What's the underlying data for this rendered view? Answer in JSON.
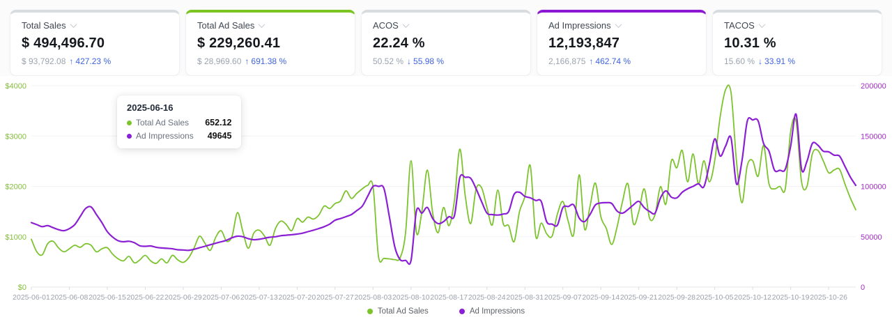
{
  "colors": {
    "green": "#7cc32e",
    "purple": "#8b1fd3",
    "axis_green": "#84bd3c",
    "axis_purple": "#a32cc8",
    "change_blue": "#3e63dd",
    "card_accent_default": "#d9dcdf"
  },
  "cards": [
    {
      "title": "Total Sales",
      "value": "$ 494,496.70",
      "prev": "$ 93,792.08",
      "change_arrow": "↑",
      "change": "427.23 %",
      "direction": "up",
      "accent_color": "#d9dcdf"
    },
    {
      "title": "Total Ad Sales",
      "value": "$ 229,260.41",
      "prev": "$ 28,969.60",
      "change_arrow": "↑",
      "change": "691.38 %",
      "direction": "up",
      "accent_color": "#7ac522"
    },
    {
      "title": "ACOS",
      "value": "22.24 %",
      "prev": "50.52 %",
      "change_arrow": "↓",
      "change": "55.98 %",
      "direction": "down",
      "accent_color": "#d9dcdf"
    },
    {
      "title": "Ad Impressions",
      "value": "12,193,847",
      "prev": "2,166,875",
      "change_arrow": "↑",
      "change": "462.74 %",
      "direction": "up",
      "accent_color": "#8c18d4"
    },
    {
      "title": "TACOS",
      "value": "10.31 %",
      "prev": "15.60 %",
      "change_arrow": "↓",
      "change": "33.91 %",
      "direction": "down",
      "accent_color": "#d9dcdf"
    }
  ],
  "tooltip": {
    "date": "2025-06-16",
    "rows": [
      {
        "label": "Total Ad Sales",
        "value": "652.12",
        "color": "#7cc32e"
      },
      {
        "label": "Ad Impressions",
        "value": "49645",
        "color": "#8b1fd3"
      }
    ]
  },
  "chart_data": {
    "type": "line",
    "start_date": "2025-06-01",
    "end_date": "2025-10-31",
    "x_tick_interval_days": 7,
    "grid": "horizontal",
    "legend_position": "bottom",
    "x_tick_labels": [
      "2025-06-01",
      "2025-06-08",
      "2025-06-15",
      "2025-06-22",
      "2025-06-29",
      "2025-07-06",
      "2025-07-13",
      "2025-07-20",
      "2025-07-27",
      "2025-08-03",
      "2025-08-10",
      "2025-08-17",
      "2025-08-24",
      "2025-08-31",
      "2025-09-07",
      "2025-09-14",
      "2025-09-21",
      "2025-09-28",
      "2025-10-05",
      "2025-10-12",
      "2025-10-19",
      "2025-10-26"
    ],
    "y_left": {
      "ticks": [
        "$0",
        "$1000",
        "$2000",
        "$3000",
        "$4000"
      ],
      "min": 0,
      "max": 4000,
      "color": "#84bd3c"
    },
    "y_right": {
      "ticks": [
        "0",
        "50000",
        "100000",
        "150000",
        "200000"
      ],
      "min": 0,
      "max": 200000,
      "color": "#a32cc8"
    },
    "series": [
      {
        "name": "Total Ad Sales",
        "axis": "left",
        "color": "#7cc32e",
        "values": [
          950,
          700,
          640,
          860,
          910,
          780,
          700,
          760,
          830,
          790,
          860,
          830,
          700,
          760,
          780,
          652.12,
          560,
          520,
          610,
          480,
          540,
          630,
          520,
          470,
          560,
          480,
          630,
          540,
          490,
          580,
          776,
          1010,
          870,
          730,
          990,
          1120,
          910,
          1010,
          1480,
          1100,
          770,
          1070,
          1130,
          1010,
          830,
          1160,
          1310,
          1240,
          1120,
          1360,
          1290,
          1390,
          1350,
          1430,
          1610,
          1560,
          1660,
          1710,
          1910,
          1760,
          1860,
          1950,
          2020,
          1995,
          610,
          570,
          560,
          545,
          580,
          1080,
          2510,
          1080,
          1500,
          2325,
          1470,
          1080,
          1580,
          1220,
          1720,
          2740,
          1815,
          1260,
          1950,
          1975,
          1580,
          1235,
          1925,
          1260,
          1220,
          900,
          1500,
          1800,
          2410,
          1010,
          1270,
          1060,
          1010,
          1450,
          1700,
          1300,
          1050,
          2230,
          1150,
          1600,
          2065,
          1400,
          1165,
          845,
          1200,
          1700,
          2050,
          1260,
          1500,
          1950,
          1360,
          1440,
          1995,
          1650,
          2510,
          2370,
          2715,
          2090,
          2645,
          2050,
          2510,
          2090,
          2510,
          3380,
          3920,
          3865,
          2510,
          1675,
          2410,
          2510,
          2200,
          2810,
          2050,
          1950,
          2000,
          1950,
          3090,
          3290,
          2090,
          2000,
          2645,
          2715,
          2510,
          2270,
          2325,
          2340,
          2050,
          1770,
          1535
        ]
      },
      {
        "name": "Ad Impressions",
        "axis": "right",
        "color": "#8b1fd3",
        "values": [
          64000,
          62000,
          60000,
          61000,
          59000,
          57000,
          56000,
          58000,
          62000,
          70000,
          78000,
          79600,
          72000,
          64000,
          55000,
          49645,
          46000,
          45000,
          45500,
          44000,
          41000,
          40500,
          40800,
          39500,
          38800,
          38500,
          38000,
          37000,
          36800,
          36500,
          37500,
          39000,
          40500,
          42000,
          43500,
          45000,
          46500,
          49000,
          50500,
          50000,
          48000,
          47000,
          47500,
          48500,
          49500,
          50000,
          51000,
          51500,
          52000,
          52600,
          53500,
          55000,
          56500,
          58100,
          60000,
          62500,
          66400,
          68000,
          69900,
          72000,
          76000,
          80300,
          90000,
          99900,
          100000,
          98000,
          70000,
          40000,
          27200,
          26500,
          26300,
          75600,
          73400,
          79100,
          68000,
          63000,
          65000,
          69900,
          71000,
          108600,
          109000,
          108000,
          97600,
          85000,
          73400,
          72000,
          71500,
          72500,
          75000,
          92000,
          94100,
          90000,
          88600,
          86000,
          85100,
          65000,
          62500,
          61600,
          78900,
          80000,
          81600,
          68500,
          65000,
          72000,
          81600,
          83500,
          83800,
          83000,
          75400,
          73400,
          77000,
          81600,
          85100,
          78900,
          75000,
          73400,
          88600,
          95500,
          89300,
          88600,
          94100,
          97600,
          100000,
          102500,
          99700,
          121800,
          147200,
          130100,
          140000,
          148100,
          102400,
          125000,
          164700,
          166000,
          165000,
          142600,
          135000,
          116200,
          116000,
          117000,
          140000,
          171600,
          117000,
          125000,
          142600,
          141000,
          135000,
          134300,
          131000,
          130100,
          120000,
          109300,
          101000
        ]
      }
    ]
  },
  "legend": [
    {
      "label": "Total Ad Sales",
      "color": "#7cc32e"
    },
    {
      "label": "Ad Impressions",
      "color": "#8b1fd3"
    }
  ]
}
